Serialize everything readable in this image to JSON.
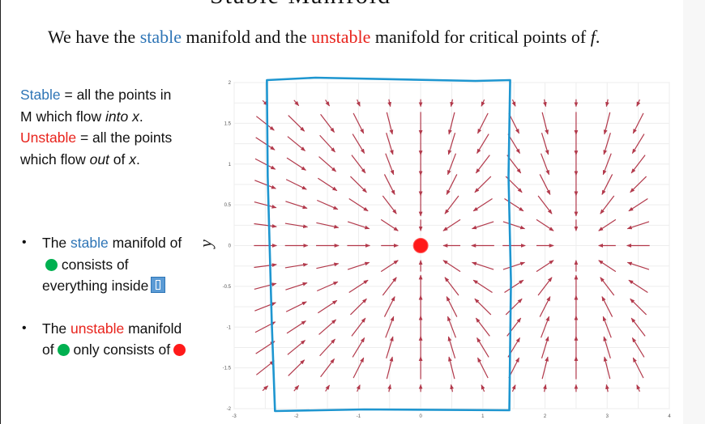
{
  "header": {
    "top_title": "Stable Manifold",
    "subtitle_pre": "We have the ",
    "subtitle_stable": "stable",
    "subtitle_mid": " manifold and the ",
    "subtitle_unstable": "unstable",
    "subtitle_post": " manifold for critical points of ",
    "subtitle_f": "f",
    "subtitle_end": "."
  },
  "definitions": {
    "stable_word": "Stable",
    "stable_rest_1": " = all the points in M which flow ",
    "stable_into": "into",
    "stable_x": "x",
    "stable_end": ".",
    "unstable_word": "Unstable",
    "unstable_rest_1": " = all the points which flow ",
    "unstable_out": "out",
    "unstable_of": " of ",
    "unstable_x": "x",
    "unstable_end": "."
  },
  "bullets": {
    "b1_pre": "The ",
    "b1_word": "stable",
    "b1_mid": " manifold of",
    "b1_post": " consists of everything inside",
    "b2_pre": "The ",
    "b2_word": "unstable",
    "b2_mid": " manifold of",
    "b2_post": " only consists of"
  },
  "colors": {
    "stable_blue": "#2e75b6",
    "unstable_red": "#e8231c",
    "arrow": "#b2394b",
    "box": "#1e96d0",
    "critical_point": "#ff1a1a",
    "green_dot": "#00b050"
  },
  "chart_data": {
    "type": "quiver",
    "ylabel": "y",
    "xlim": [
      -3,
      4
    ],
    "ylim": [
      -2,
      2
    ],
    "xticks": [
      "-3",
      "-2",
      "-1",
      "0",
      "1",
      "2",
      "3",
      "4"
    ],
    "yticks": [
      "2",
      "1.5",
      "1",
      "0.5",
      "0",
      "-0.5",
      "-1",
      "-1.5",
      "-2"
    ],
    "grid": true,
    "sinks": [
      [
        0,
        0
      ],
      [
        2.5,
        0
      ]
    ],
    "highlighted_point": [
      0,
      0
    ],
    "stable_region_box": {
      "x": [
        -2.5,
        1.4
      ],
      "y": [
        -2,
        2
      ]
    }
  }
}
